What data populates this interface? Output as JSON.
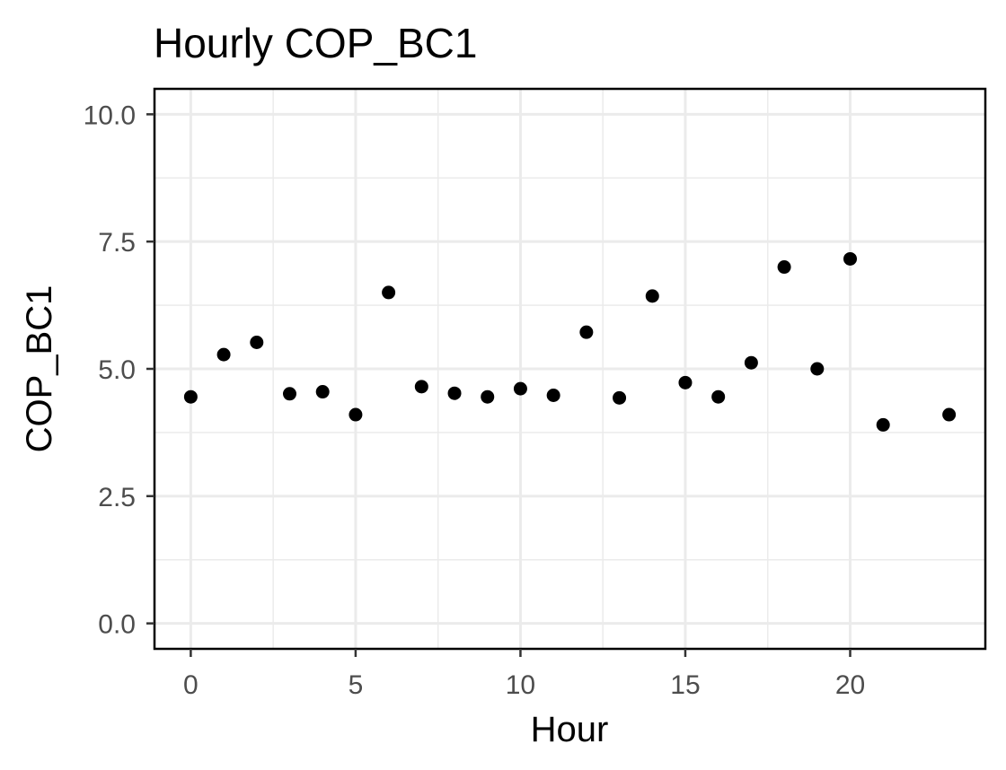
{
  "chart_data": {
    "type": "scatter",
    "title": "Hourly COP_BC1",
    "xlabel": "Hour",
    "ylabel": "COP_BC1",
    "xlim": [
      -1.1,
      24.1
    ],
    "ylim": [
      -0.5,
      10.5
    ],
    "xticks": [
      0,
      5,
      10,
      15,
      20
    ],
    "xtick_labels": [
      "0",
      "5",
      "10",
      "15",
      "20"
    ],
    "yticks": [
      0,
      2.5,
      5,
      7.5,
      10
    ],
    "ytick_labels": [
      "0.0",
      "2.5",
      "5.0",
      "7.5",
      "10.0"
    ],
    "grid": true,
    "point_color": "#000000",
    "x": [
      0,
      1,
      2,
      3,
      4,
      5,
      6,
      7,
      8,
      9,
      10,
      11,
      12,
      13,
      14,
      15,
      16,
      17,
      18,
      19,
      20,
      21,
      22,
      23
    ],
    "y": [
      4.45,
      5.28,
      5.52,
      4.51,
      4.55,
      4.1,
      6.5,
      4.65,
      4.52,
      4.45,
      4.61,
      4.48,
      5.72,
      4.43,
      6.43,
      4.73,
      4.45,
      5.12,
      7.0,
      5.0,
      7.16,
      3.9,
      null,
      4.1
    ]
  }
}
